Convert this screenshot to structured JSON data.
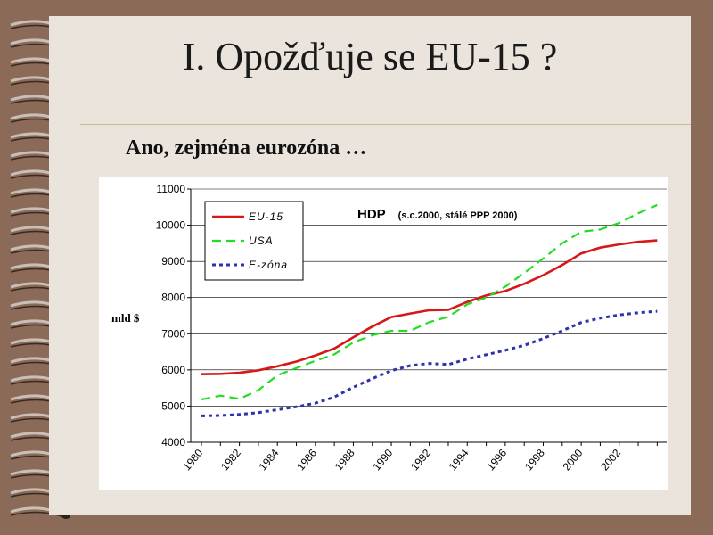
{
  "slide": {
    "title": "I.  Opožďuje se EU-15 ?",
    "subtitle": "Ano, zejména eurozóna …"
  },
  "colors": {
    "background": "#8c6a58",
    "slide": "#ebe4dc",
    "eu15": "#d61818",
    "usa": "#22dd22",
    "ezona": "#2d33aa"
  },
  "chart_data": {
    "type": "line",
    "title": "HDP",
    "subtitle": "(s.c.2000, stálé PPP 2000)",
    "ylabel": "mld $",
    "xlabel": "",
    "ylim": [
      4000,
      11000
    ],
    "yticks": [
      "4000",
      "5000",
      "6000",
      "7000",
      "8000",
      "9000",
      "10000",
      "11000"
    ],
    "xticks": [
      "1980",
      "1982",
      "1984",
      "1986",
      "1988",
      "1990",
      "1992",
      "1994",
      "1996",
      "1998",
      "2000",
      "2002"
    ],
    "grid": "horizontal",
    "legend": "top-left",
    "x": [
      1980,
      1981,
      1982,
      1983,
      1984,
      1985,
      1986,
      1987,
      1988,
      1989,
      1990,
      1991,
      1992,
      1993,
      1994,
      1995,
      1996,
      1997,
      1998,
      1999,
      2000,
      2001,
      2002,
      2003,
      2004
    ],
    "series": [
      {
        "name": "EU-15",
        "style": "solid",
        "values": [
          5880,
          5890,
          5920,
          5990,
          6100,
          6230,
          6400,
          6590,
          6900,
          7200,
          7460,
          7560,
          7650,
          7660,
          7880,
          8060,
          8180,
          8380,
          8620,
          8900,
          9220,
          9380,
          9470,
          9540,
          9580
        ]
      },
      {
        "name": "USA",
        "style": "dashed",
        "values": [
          5180,
          5290,
          5200,
          5440,
          5850,
          6050,
          6250,
          6430,
          6760,
          6960,
          7080,
          7080,
          7320,
          7470,
          7810,
          8000,
          8300,
          8680,
          9080,
          9500,
          9820,
          9880,
          10060,
          10330,
          10560
        ]
      },
      {
        "name": "E-zóna",
        "style": "dotted",
        "values": [
          4730,
          4740,
          4770,
          4820,
          4900,
          4980,
          5080,
          5250,
          5520,
          5760,
          5980,
          6120,
          6180,
          6150,
          6300,
          6420,
          6540,
          6680,
          6870,
          7080,
          7310,
          7430,
          7520,
          7580,
          7620
        ]
      }
    ]
  }
}
